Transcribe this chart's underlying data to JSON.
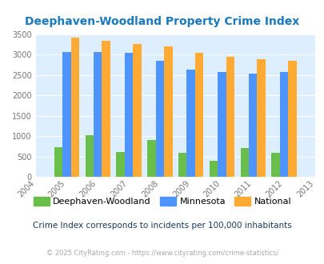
{
  "title": "Deephaven-Woodland Property Crime Index",
  "title_color": "#1a7abf",
  "years": [
    2005,
    2006,
    2007,
    2008,
    2009,
    2010,
    2011,
    2012
  ],
  "deephaven": [
    730,
    1020,
    620,
    910,
    600,
    390,
    700,
    600
  ],
  "minnesota": [
    3070,
    3075,
    3040,
    2855,
    2630,
    2575,
    2545,
    2570
  ],
  "national": [
    3420,
    3340,
    3255,
    3200,
    3040,
    2950,
    2890,
    2850
  ],
  "bar_colors": {
    "deephaven": "#6abf4b",
    "minnesota": "#4d94ff",
    "national": "#ffaa33"
  },
  "background_color": "#ddeeff",
  "xlim_min": 2004,
  "xlim_max": 2013,
  "ylim_min": 0,
  "ylim_max": 3500,
  "yticks": [
    0,
    500,
    1000,
    1500,
    2000,
    2500,
    3000,
    3500
  ],
  "legend_labels": [
    "Deephaven-Woodland",
    "Minnesota",
    "National"
  ],
  "note": "Crime Index corresponds to incidents per 100,000 inhabitants",
  "copyright": "© 2025 CityRating.com - https://www.cityrating.com/crime-statistics/",
  "note_color": "#1a3a5c",
  "copyright_color": "#aaaaaa",
  "bar_width": 0.27
}
